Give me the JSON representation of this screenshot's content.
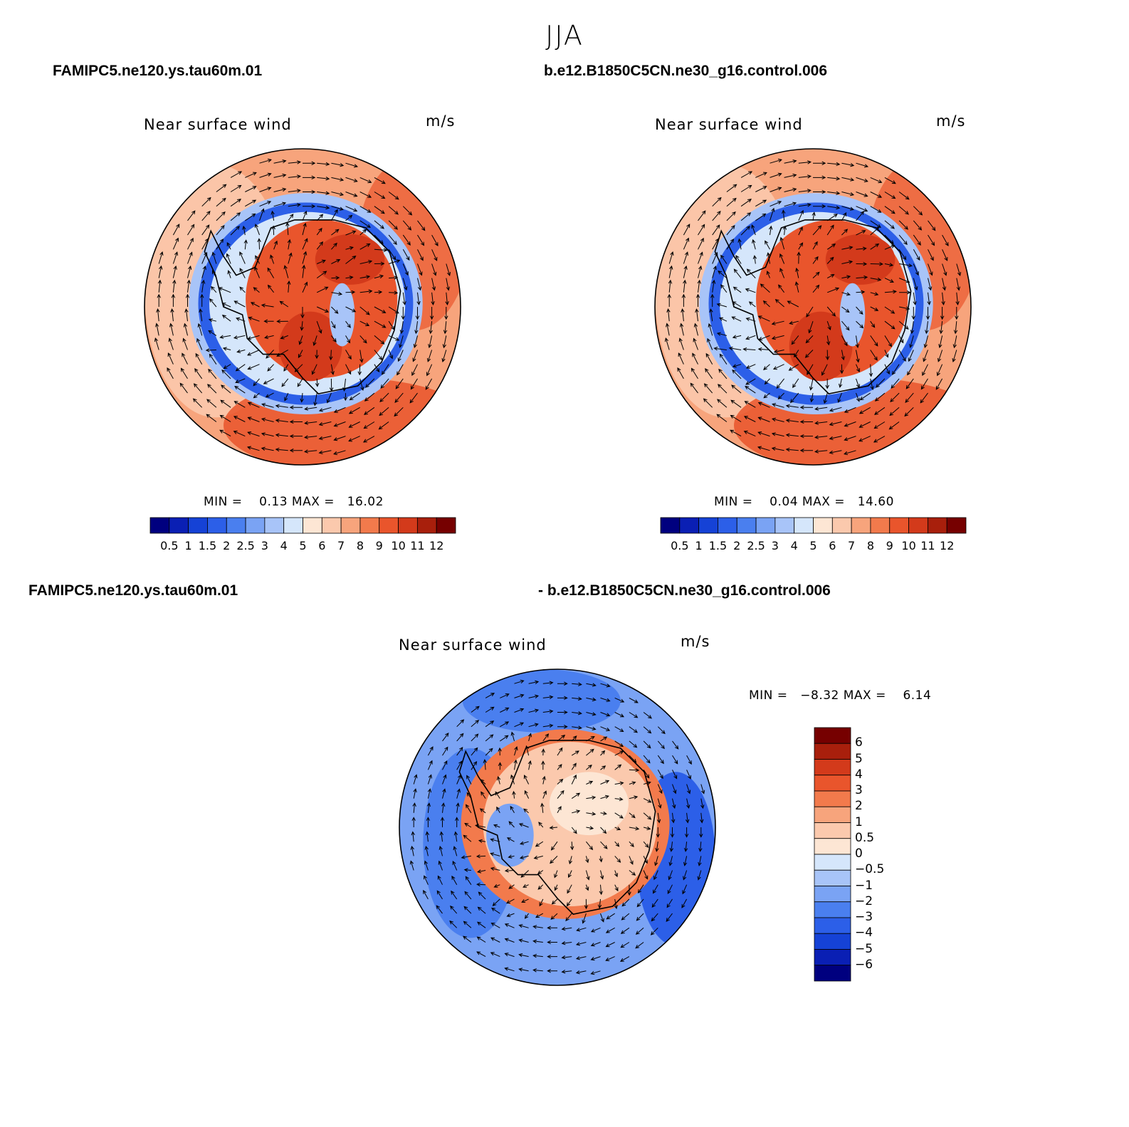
{
  "title": "JJA",
  "panels": [
    {
      "case_label": "FAMIPC5.ne120.ys.tau60m.01",
      "variable": "Near surface wind",
      "units": "m/s",
      "stats": "MIN =    0.13 MAX =   16.02",
      "min": 0.13,
      "max": 16.02,
      "colorbar_ticks": [
        "0.5",
        "1",
        "1.5",
        "2",
        "2.5",
        "3",
        "4",
        "5",
        "6",
        "7",
        "8",
        "9",
        "10",
        "11",
        "12"
      ],
      "palette": [
        "#00007f",
        "#0a1fb4",
        "#1542d6",
        "#2c5fe8",
        "#4a7fef",
        "#7aa3f4",
        "#a8c4f8",
        "#d5e6fb",
        "#fde6d4",
        "#fbc9ad",
        "#f7a47c",
        "#f27a4c",
        "#e9552c",
        "#d33a1b",
        "#a81f0c",
        "#760000"
      ]
    },
    {
      "case_label": "b.e12.B1850C5CN.ne30_g16.control.006",
      "variable": "Near surface wind",
      "units": "m/s",
      "stats": "MIN =    0.04 MAX =   14.60",
      "min": 0.04,
      "max": 14.6,
      "colorbar_ticks": [
        "0.5",
        "1",
        "1.5",
        "2",
        "2.5",
        "3",
        "4",
        "5",
        "6",
        "7",
        "8",
        "9",
        "10",
        "11",
        "12"
      ],
      "palette": [
        "#00007f",
        "#0a1fb4",
        "#1542d6",
        "#2c5fe8",
        "#4a7fef",
        "#7aa3f4",
        "#a8c4f8",
        "#d5e6fb",
        "#fde6d4",
        "#fbc9ad",
        "#f7a47c",
        "#f27a4c",
        "#e9552c",
        "#d33a1b",
        "#a81f0c",
        "#760000"
      ]
    },
    {
      "case_label": "FAMIPC5.ne120.ys.tau60m.01",
      "case_label_2": "- b.e12.B1850C5CN.ne30_g16.control.006",
      "variable": "Near surface wind",
      "units": "m/s",
      "stats": "MIN =   −8.32 MAX =    6.14",
      "min": -8.32,
      "max": 6.14,
      "colorbar_ticks": [
        "6",
        "5",
        "4",
        "3",
        "2",
        "1",
        "0.5",
        "0",
        "−0.5",
        "−1",
        "−2",
        "−3",
        "−4",
        "−5",
        "−6"
      ],
      "palette": [
        "#760000",
        "#a81f0c",
        "#d33a1b",
        "#e9552c",
        "#f27a4c",
        "#f7a47c",
        "#fbc9ad",
        "#fde6d4",
        "#d5e6fb",
        "#a8c4f8",
        "#7aa3f4",
        "#4a7fef",
        "#2c5fe8",
        "#1542d6",
        "#0a1fb4",
        "#00007f"
      ]
    }
  ]
}
